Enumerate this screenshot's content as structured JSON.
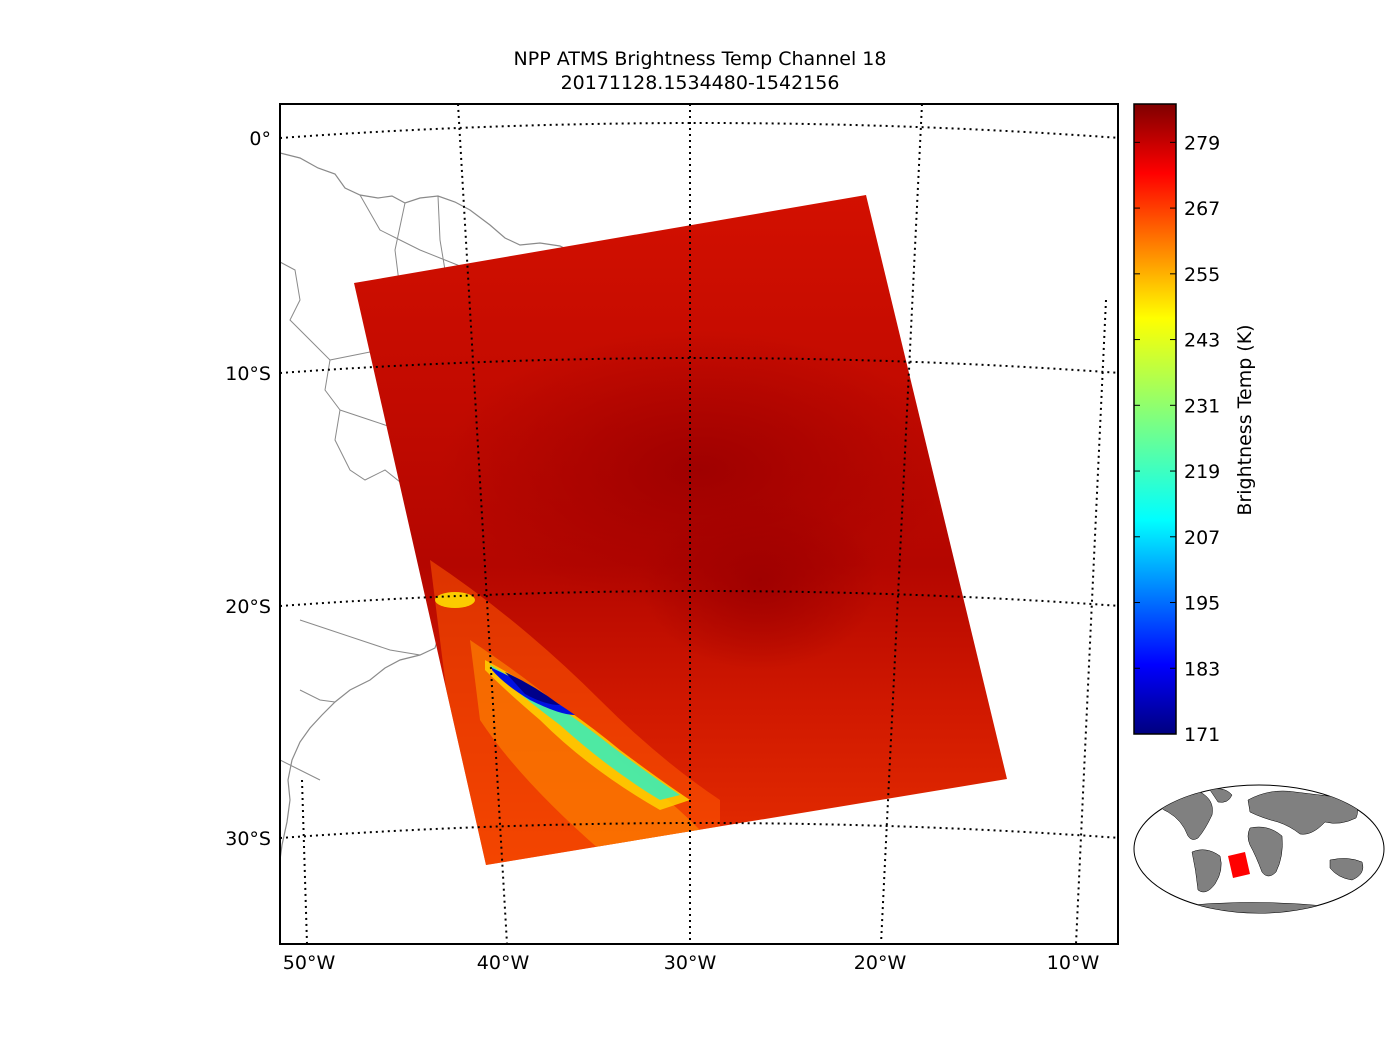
{
  "title": "NPP ATMS Brightness Temp Channel 18",
  "subtitle": "20171128.1534480-1542156",
  "map": {
    "latitude_labels": [
      "0°",
      "10°S",
      "20°S",
      "30°S"
    ],
    "longitude_labels": [
      "50°W",
      "40°W",
      "30°W",
      "20°W",
      "10°W"
    ],
    "gridline_style": "dotted"
  },
  "swath": {
    "corners_lonlat": [
      [
        -47.5,
        -6.2
      ],
      [
        -21.0,
        -2.5
      ],
      [
        -13.5,
        -27.5
      ],
      [
        -40.5,
        -31.0
      ]
    ],
    "dominant_value_K": 279,
    "notes_feature": "cold band (~171-230 K) oriented NW-SE near 40°W-33°W, 23°S-29°S"
  },
  "colorbar": {
    "label": "Brightness Temp (K)",
    "ticks": [
      "279",
      "267",
      "255",
      "243",
      "231",
      "219",
      "207",
      "195",
      "183",
      "171"
    ],
    "min": 171,
    "max": 286,
    "colormap": "jet"
  },
  "inset": {
    "land_color": "#808080",
    "swath_color": "#ff0000"
  },
  "colors": {
    "coast": "#8a8a8a",
    "swath_warm": "#c40a00",
    "swath_hot": "#a50000"
  }
}
